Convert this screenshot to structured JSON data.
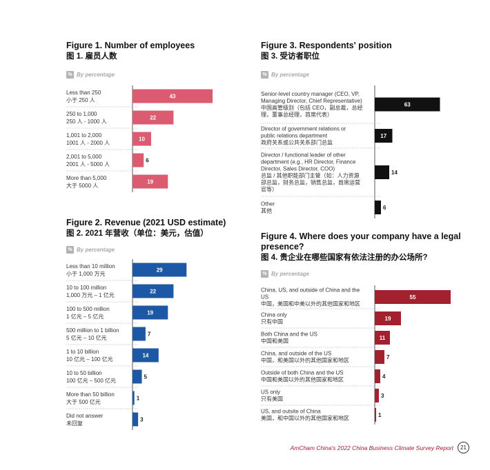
{
  "percent_badge": "%",
  "percent_label": "By percentage",
  "footer": {
    "text": "AmCham China's 2022 China Business Climate Survey Report",
    "page": "21"
  },
  "chart_data": [
    {
      "id": "fig1",
      "type": "bar",
      "orientation": "horizontal",
      "title": "Figure 1. Number of employees",
      "subtitle": "图 1. 雇员人数",
      "unit": "By percentage",
      "color": "#db5b70",
      "xlim": [
        0,
        60
      ],
      "categories": [
        [
          "Less than 250",
          "小于 250 人"
        ],
        [
          "250 to 1,000",
          "250 人 - 1000 人"
        ],
        [
          "1,001 to 2,000",
          "1001 人 - 2000 人"
        ],
        [
          "2,001 to 5,000",
          "2001 人 - 5000 人"
        ],
        [
          "More than 5,000",
          "大于 5000 人"
        ]
      ],
      "values": [
        43,
        22,
        10,
        6,
        19
      ]
    },
    {
      "id": "fig2",
      "type": "bar",
      "orientation": "horizontal",
      "title": "Figure 2. Revenue (2021 USD estimate)",
      "subtitle": "图 2. 2021 年营收（单位：美元，估值）",
      "unit": "By percentage",
      "color": "#1c58a6",
      "xlim": [
        0,
        60
      ],
      "categories": [
        [
          "Less than 10 million",
          "小于 1,000 万元"
        ],
        [
          "10 to 100 million",
          "1,000 万元 – 1 亿元"
        ],
        [
          "100 to 500 million",
          "1 亿元 – 5 亿元"
        ],
        [
          "500 million to 1 billion",
          "5 亿元 – 10 亿元"
        ],
        [
          "1 to 10 billion",
          "10 亿元 – 100 亿元"
        ],
        [
          "10 to 50 billion",
          "100 亿元 – 500 亿元"
        ],
        [
          "More than 50 billion",
          "大于 500 亿元"
        ],
        [
          "Did not answer",
          "未回复"
        ]
      ],
      "values": [
        29,
        22,
        19,
        7,
        14,
        5,
        1,
        3
      ]
    },
    {
      "id": "fig3",
      "type": "bar",
      "orientation": "horizontal",
      "title": "Figure 3. Respondents' position",
      "subtitle": "图 3. 受访者职位",
      "unit": "By percentage",
      "color": "#111111",
      "xlim": [
        0,
        80
      ],
      "categories": [
        [
          "Senior-level country manager (CEO, VP,",
          "Managing Director, Chief Representative)",
          "中国高管级别（包括 CEO，副总裁，总经",
          "理，董事总经理，首席代表）"
        ],
        [
          "Director of government relations or",
          "public relations department",
          "政府关系或公共关系部门总监"
        ],
        [
          "Director / functional leader of other",
          "department (e.g., HR Director, Finance",
          "Director, Sales Director, COO)",
          "总监 / 其他职能部门主管（如：人力资源",
          "部总监，财务总监，销售总监，首席运营",
          "官等）"
        ],
        [
          "Other",
          "其他"
        ]
      ],
      "values": [
        63,
        17,
        14,
        6
      ]
    },
    {
      "id": "fig4",
      "type": "bar",
      "orientation": "horizontal",
      "title": "Figure 4. Where does your company have a legal presence?",
      "title_lines": [
        "Figure 4. Where does your company have a legal",
        "presence?"
      ],
      "subtitle": "图 4. 贵企业在哪些国家有依法注册的办公场所?",
      "unit": "By percentage",
      "color": "#a3202f",
      "xlim": [
        0,
        60
      ],
      "categories": [
        [
          "China, US, and outside of China and the",
          "US",
          "中国，美国和中美以外的其他国家和地区"
        ],
        [
          "China only",
          "只有中国"
        ],
        [
          "Both China and the US",
          "中国和美国"
        ],
        [
          "China, and outside of the US",
          "中国，和美国以外的其他国家和地区"
        ],
        [
          "Outside of both China and the US",
          "中国和美国以外的其他国家和地区"
        ],
        [
          "US only",
          "只有美国"
        ],
        [
          "US, and outsite of China",
          "美国，和中国以外的其他国家和地区"
        ]
      ],
      "values": [
        55,
        19,
        11,
        7,
        4,
        3,
        1
      ]
    }
  ]
}
